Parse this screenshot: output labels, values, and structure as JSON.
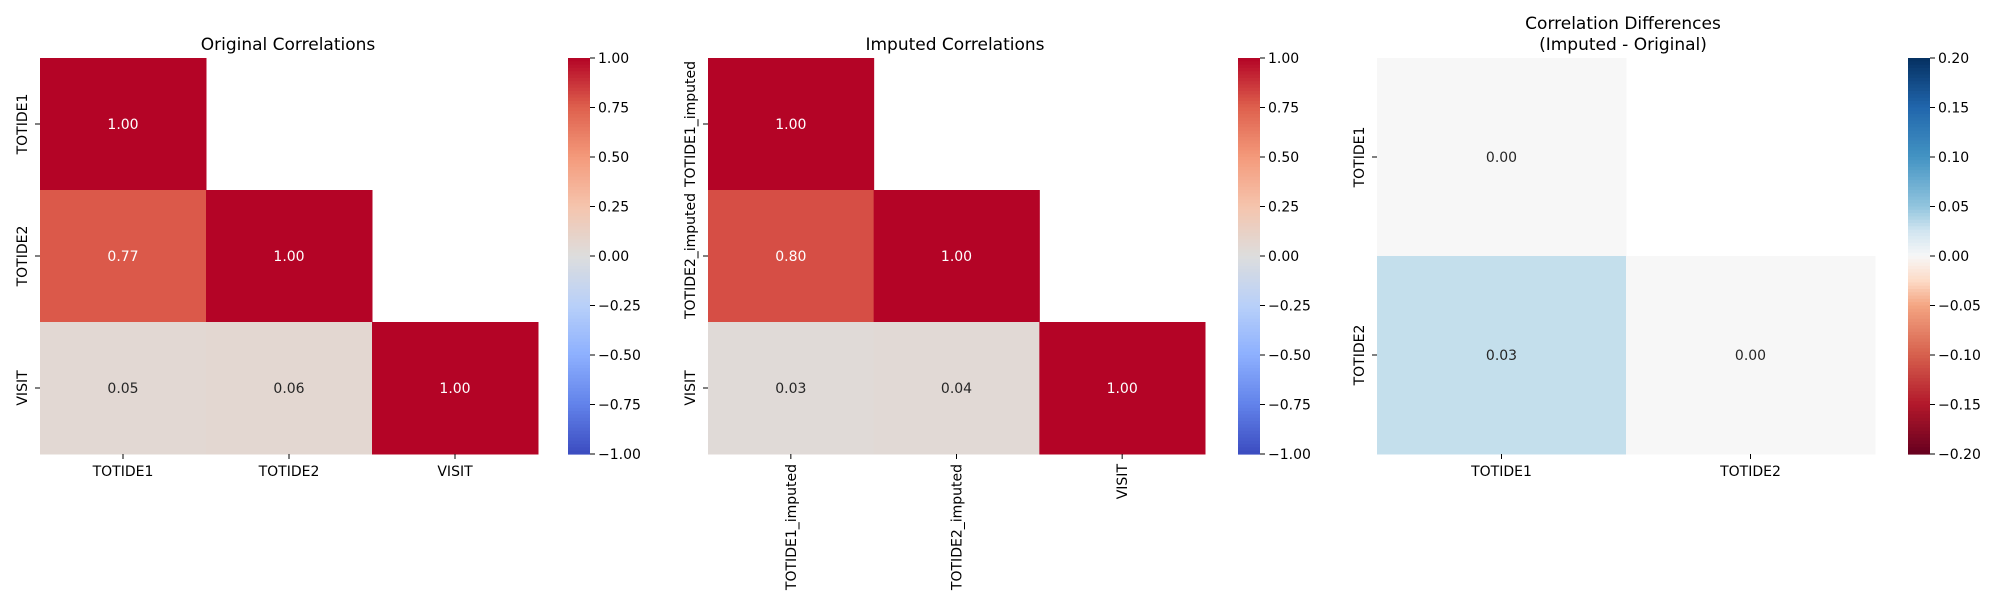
{
  "chart_data": [
    {
      "type": "heatmap",
      "title": "Original Correlations",
      "subtitle": "",
      "x_labels": [
        "TOTIDE1",
        "TOTIDE2",
        "VISIT"
      ],
      "y_labels": [
        "TOTIDE1",
        "TOTIDE2",
        "VISIT"
      ],
      "mask": "upper-triangle",
      "matrix": [
        [
          1.0,
          null,
          null
        ],
        [
          0.77,
          1.0,
          null
        ],
        [
          0.05,
          0.06,
          1.0
        ]
      ],
      "cell_labels": [
        [
          "1.00",
          "",
          ""
        ],
        [
          "0.77",
          "1.00",
          ""
        ],
        [
          "0.05",
          "0.06",
          "1.00"
        ]
      ],
      "x_tick_rotation": "horizontal",
      "colorbar": {
        "colormap": "coolwarm",
        "range": [
          -1.0,
          1.0
        ],
        "ticks": [
          1.0,
          0.75,
          0.5,
          0.25,
          0.0,
          -0.25,
          -0.5,
          -0.75,
          -1.0
        ],
        "tick_labels": [
          "1.00",
          "0.75",
          "0.50",
          "0.25",
          "0.00",
          "−0.25",
          "−0.50",
          "−0.75",
          "−1.00"
        ]
      }
    },
    {
      "type": "heatmap",
      "title": "Imputed Correlations",
      "subtitle": "",
      "x_labels": [
        "TOTIDE1_imputed",
        "TOTIDE2_imputed",
        "VISIT"
      ],
      "y_labels": [
        "TOTIDE1_imputed",
        "TOTIDE2_imputed",
        "VISIT"
      ],
      "mask": "upper-triangle",
      "matrix": [
        [
          1.0,
          null,
          null
        ],
        [
          0.8,
          1.0,
          null
        ],
        [
          0.03,
          0.04,
          1.0
        ]
      ],
      "cell_labels": [
        [
          "1.00",
          "",
          ""
        ],
        [
          "0.80",
          "1.00",
          ""
        ],
        [
          "0.03",
          "0.04",
          "1.00"
        ]
      ],
      "x_tick_rotation": "vertical",
      "colorbar": {
        "colormap": "coolwarm",
        "range": [
          -1.0,
          1.0
        ],
        "ticks": [
          1.0,
          0.75,
          0.5,
          0.25,
          0.0,
          -0.25,
          -0.5,
          -0.75,
          -1.0
        ],
        "tick_labels": [
          "1.00",
          "0.75",
          "0.50",
          "0.25",
          "0.00",
          "−0.25",
          "−0.50",
          "−0.75",
          "−1.00"
        ]
      }
    },
    {
      "type": "heatmap",
      "title": "Correlation Differences",
      "subtitle": "(Imputed - Original)",
      "x_labels": [
        "TOTIDE1",
        "TOTIDE2"
      ],
      "y_labels": [
        "TOTIDE1",
        "TOTIDE2"
      ],
      "mask": "upper-triangle",
      "matrix": [
        [
          0.0,
          null
        ],
        [
          0.03,
          0.0
        ]
      ],
      "cell_labels": [
        [
          "0.00",
          ""
        ],
        [
          "0.03",
          "0.00"
        ]
      ],
      "x_tick_rotation": "horizontal",
      "colorbar": {
        "colormap": "RdBu",
        "range": [
          -0.2,
          0.2
        ],
        "ticks": [
          0.2,
          0.15,
          0.1,
          0.05,
          0.0,
          -0.05,
          -0.1,
          -0.15,
          -0.2
        ],
        "tick_labels": [
          "0.20",
          "0.15",
          "0.10",
          "0.05",
          "0.00",
          "−0.05",
          "−0.10",
          "−0.15",
          "−0.20"
        ]
      }
    }
  ]
}
